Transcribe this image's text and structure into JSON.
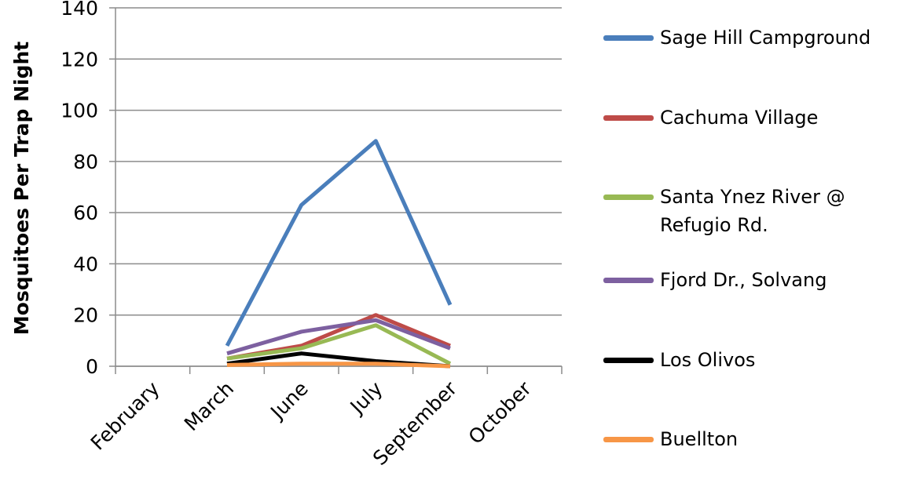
{
  "chart_data": {
    "type": "line",
    "y_label": "Mosquitoes Per Trap Night",
    "categories": [
      "February",
      "March",
      "June",
      "July",
      "September",
      "October"
    ],
    "series": [
      {
        "name": "Sage Hill Campground",
        "color": "#4a7ebb",
        "values": [
          null,
          8,
          63,
          88,
          24,
          null
        ]
      },
      {
        "name": "Cachuma Village",
        "color": "#be4b48",
        "values": [
          null,
          3,
          8,
          20,
          8,
          null
        ]
      },
      {
        "name": "Santa Ynez River @ Refugio Rd.",
        "color": "#98b954",
        "values": [
          null,
          3,
          7,
          16,
          1,
          null
        ]
      },
      {
        "name": "Fjord Dr., Solvang",
        "color": "#7d60a0",
        "values": [
          null,
          5,
          13.5,
          18,
          7,
          null
        ]
      },
      {
        "name": "Los Olivos",
        "color": "#000000",
        "values": [
          null,
          1,
          5,
          2,
          0,
          null
        ]
      },
      {
        "name": "Buellton",
        "color": "#f79646",
        "values": [
          null,
          0.5,
          1,
          1,
          0,
          null
        ]
      }
    ],
    "ylim": [
      0,
      140
    ],
    "yticks": [
      0,
      20,
      40,
      60,
      80,
      100,
      120,
      140
    ],
    "grid": true
  }
}
